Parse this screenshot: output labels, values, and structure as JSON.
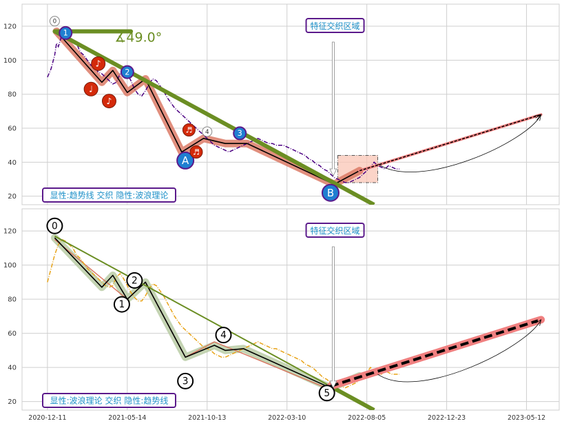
{
  "chart_data": [
    {
      "type": "line",
      "yticks": [
        20,
        40,
        60,
        80,
        100,
        120
      ],
      "ylim": [
        15,
        133
      ],
      "grid": true,
      "angle_label": "∡49.0°",
      "box_top": "特征交织区域",
      "box_bottom": "显性:趋势线 交织 隐性:波浪理论",
      "price": [
        [
          0,
          90
        ],
        [
          2,
          95
        ],
        [
          4,
          103
        ],
        [
          5,
          110
        ],
        [
          6,
          108
        ],
        [
          8,
          115
        ],
        [
          10,
          117
        ],
        [
          12,
          113
        ],
        [
          14,
          112
        ],
        [
          16,
          110
        ],
        [
          18,
          105
        ],
        [
          20,
          103
        ],
        [
          22,
          100
        ],
        [
          24,
          97
        ],
        [
          26,
          96
        ],
        [
          28,
          93
        ],
        [
          30,
          92
        ],
        [
          32,
          90
        ],
        [
          34,
          88
        ],
        [
          36,
          86
        ],
        [
          38,
          87
        ],
        [
          40,
          92
        ],
        [
          42,
          95
        ],
        [
          44,
          92
        ],
        [
          46,
          88
        ],
        [
          48,
          83
        ],
        [
          50,
          80
        ],
        [
          52,
          79
        ],
        [
          54,
          82
        ],
        [
          56,
          86
        ],
        [
          58,
          89
        ],
        [
          60,
          88
        ],
        [
          62,
          85
        ],
        [
          64,
          82
        ],
        [
          66,
          78
        ],
        [
          68,
          75
        ],
        [
          70,
          72
        ],
        [
          72,
          70
        ],
        [
          74,
          68
        ],
        [
          76,
          66
        ],
        [
          78,
          64
        ],
        [
          80,
          62
        ],
        [
          82,
          60
        ],
        [
          84,
          58
        ],
        [
          86,
          56
        ],
        [
          88,
          54
        ],
        [
          90,
          52
        ],
        [
          92,
          50
        ],
        [
          94,
          49
        ],
        [
          96,
          48
        ],
        [
          98,
          47
        ],
        [
          100,
          46
        ],
        [
          102,
          47
        ],
        [
          104,
          48
        ],
        [
          106,
          49
        ],
        [
          108,
          50
        ],
        [
          110,
          51
        ],
        [
          112,
          52
        ],
        [
          114,
          53
        ],
        [
          116,
          54
        ],
        [
          118,
          53
        ],
        [
          120,
          52
        ],
        [
          122,
          51
        ],
        [
          124,
          51
        ],
        [
          126,
          50
        ],
        [
          128,
          50
        ],
        [
          130,
          50
        ],
        [
          132,
          49
        ],
        [
          134,
          48
        ],
        [
          136,
          47
        ],
        [
          138,
          46
        ],
        [
          140,
          45
        ],
        [
          142,
          44
        ],
        [
          144,
          42
        ],
        [
          146,
          41
        ],
        [
          148,
          39
        ],
        [
          150,
          38
        ],
        [
          152,
          36
        ],
        [
          154,
          35
        ],
        [
          156,
          33
        ],
        [
          158,
          31
        ],
        [
          160,
          30
        ],
        [
          162,
          29
        ],
        [
          164,
          28
        ],
        [
          166,
          28
        ],
        [
          168,
          29
        ],
        [
          170,
          30
        ],
        [
          172,
          31
        ],
        [
          174,
          33
        ],
        [
          176,
          35
        ],
        [
          178,
          37
        ],
        [
          180,
          40
        ],
        [
          182,
          38
        ],
        [
          184,
          37
        ],
        [
          186,
          36
        ],
        [
          188,
          38
        ],
        [
          190,
          37
        ],
        [
          192,
          36
        ],
        [
          194,
          36
        ]
      ],
      "wave": [
        [
          5,
          117
        ],
        [
          30,
          87
        ],
        [
          36,
          94
        ],
        [
          44,
          81
        ],
        [
          54,
          89
        ],
        [
          74,
          46
        ],
        [
          86,
          54
        ],
        [
          98,
          51
        ],
        [
          110,
          51
        ],
        [
          158,
          27
        ],
        [
          172,
          35
        ]
      ],
      "trend_pts": [
        [
          4,
          117
        ],
        [
          180,
          15
        ]
      ],
      "trend_short": [
        [
          4,
          117
        ],
        [
          46,
          117
        ]
      ],
      "forecast": [
        [
          172,
          35
        ],
        [
          272,
          68
        ]
      ],
      "rect": [
        [
          160,
          182
        ],
        [
          28,
          44
        ]
      ],
      "arc": [
        [
          182,
          39
        ],
        [
          272,
          68
        ]
      ],
      "markers": [
        {
          "x": 4,
          "y": 123,
          "text": "0",
          "kind": "white",
          "r": 7
        },
        {
          "x": 10,
          "y": 116,
          "text": "1",
          "kind": "blue",
          "r": 9
        },
        {
          "x": 28,
          "y": 98,
          "text": "♪",
          "kind": "red",
          "r": 10
        },
        {
          "x": 24,
          "y": 83,
          "text": "♩",
          "kind": "red",
          "r": 10
        },
        {
          "x": 34,
          "y": 76,
          "text": "♪",
          "kind": "red",
          "r": 10
        },
        {
          "x": 44,
          "y": 93,
          "text": "2",
          "kind": "blue",
          "r": 9
        },
        {
          "x": 76,
          "y": 41,
          "text": "A",
          "kind": "blue",
          "r": 12
        },
        {
          "x": 78,
          "y": 59,
          "text": "♬",
          "kind": "red",
          "r": 9
        },
        {
          "x": 82,
          "y": 46,
          "text": "♬",
          "kind": "red",
          "r": 9
        },
        {
          "x": 88,
          "y": 58,
          "text": "4",
          "kind": "white",
          "r": 7
        },
        {
          "x": 106,
          "y": 57,
          "text": "3",
          "kind": "blue",
          "r": 9
        },
        {
          "x": 156,
          "y": 22,
          "text": "B",
          "kind": "blue",
          "r": 12
        }
      ]
    },
    {
      "type": "line",
      "yticks": [
        20,
        40,
        60,
        80,
        100,
        120
      ],
      "ylim": [
        15,
        133
      ],
      "grid": true,
      "box_top": "特征交织区域",
      "box_bottom": "显性:波浪理论 交织 隐性:趋势线",
      "price": [
        [
          0,
          90
        ],
        [
          2,
          98
        ],
        [
          4,
          106
        ],
        [
          6,
          112
        ],
        [
          8,
          115
        ],
        [
          10,
          114
        ],
        [
          12,
          112
        ],
        [
          14,
          110
        ],
        [
          16,
          106
        ],
        [
          18,
          104
        ],
        [
          20,
          101
        ],
        [
          22,
          98
        ],
        [
          24,
          96
        ],
        [
          26,
          94
        ],
        [
          28,
          92
        ],
        [
          30,
          90
        ],
        [
          32,
          88
        ],
        [
          34,
          87
        ],
        [
          36,
          88
        ],
        [
          38,
          93
        ],
        [
          40,
          95
        ],
        [
          42,
          92
        ],
        [
          44,
          88
        ],
        [
          46,
          84
        ],
        [
          48,
          81
        ],
        [
          50,
          79
        ],
        [
          52,
          79
        ],
        [
          54,
          82
        ],
        [
          56,
          86
        ],
        [
          58,
          89
        ],
        [
          60,
          88
        ],
        [
          62,
          85
        ],
        [
          64,
          82
        ],
        [
          66,
          78
        ],
        [
          68,
          74
        ],
        [
          70,
          70
        ],
        [
          72,
          67
        ],
        [
          74,
          64
        ],
        [
          76,
          62
        ],
        [
          78,
          60
        ],
        [
          80,
          58
        ],
        [
          82,
          56
        ],
        [
          84,
          54
        ],
        [
          86,
          52
        ],
        [
          88,
          51
        ],
        [
          90,
          50
        ],
        [
          92,
          48
        ],
        [
          94,
          47
        ],
        [
          96,
          46
        ],
        [
          98,
          46
        ],
        [
          100,
          47
        ],
        [
          102,
          48
        ],
        [
          104,
          49
        ],
        [
          106,
          50
        ],
        [
          108,
          51
        ],
        [
          110,
          52
        ],
        [
          112,
          53
        ],
        [
          114,
          54
        ],
        [
          116,
          55
        ],
        [
          118,
          54
        ],
        [
          120,
          53
        ],
        [
          122,
          52
        ],
        [
          124,
          51
        ],
        [
          126,
          51
        ],
        [
          128,
          50
        ],
        [
          130,
          49
        ],
        [
          132,
          48
        ],
        [
          134,
          47
        ],
        [
          136,
          46
        ],
        [
          138,
          45
        ],
        [
          140,
          44
        ],
        [
          142,
          42
        ],
        [
          144,
          41
        ],
        [
          146,
          40
        ],
        [
          148,
          38
        ],
        [
          150,
          36
        ],
        [
          152,
          34
        ],
        [
          154,
          33
        ],
        [
          156,
          31
        ],
        [
          158,
          30
        ],
        [
          160,
          29
        ],
        [
          162,
          29
        ],
        [
          164,
          28
        ],
        [
          166,
          29
        ],
        [
          168,
          30
        ],
        [
          170,
          31
        ],
        [
          172,
          33
        ],
        [
          174,
          35
        ],
        [
          176,
          37
        ],
        [
          178,
          40
        ],
        [
          180,
          38
        ],
        [
          182,
          37
        ],
        [
          184,
          36
        ],
        [
          186,
          38
        ],
        [
          188,
          37
        ],
        [
          190,
          36
        ],
        [
          192,
          36
        ],
        [
          194,
          36
        ]
      ],
      "wave": [
        [
          4,
          116
        ],
        [
          30,
          87
        ],
        [
          36,
          94
        ],
        [
          44,
          80
        ],
        [
          54,
          90
        ],
        [
          76,
          46
        ],
        [
          92,
          53
        ],
        [
          98,
          50
        ],
        [
          108,
          51
        ],
        [
          156,
          28
        ],
        [
          172,
          35
        ]
      ],
      "wave2": [
        [
          4,
          115
        ],
        [
          44,
          80
        ],
        [
          54,
          90
        ],
        [
          76,
          46
        ],
        [
          92,
          55
        ],
        [
          156,
          27
        ]
      ],
      "trend_pts": [
        [
          4,
          117
        ],
        [
          180,
          15
        ]
      ],
      "forecast": [
        [
          156,
          29
        ],
        [
          272,
          68
        ]
      ],
      "arc": [
        [
          182,
          36
        ],
        [
          272,
          68
        ]
      ],
      "markers": [
        {
          "x": 4,
          "y": 123,
          "text": "0",
          "kind": "outline",
          "r": 11
        },
        {
          "x": 41,
          "y": 77,
          "text": "1",
          "kind": "outline",
          "r": 11
        },
        {
          "x": 48,
          "y": 91,
          "text": "2",
          "kind": "outline",
          "r": 11
        },
        {
          "x": 76,
          "y": 32,
          "text": "3",
          "kind": "outline",
          "r": 11
        },
        {
          "x": 97,
          "y": 59,
          "text": "4",
          "kind": "outline",
          "r": 11
        },
        {
          "x": 154,
          "y": 25,
          "text": "5",
          "kind": "outline",
          "r": 11
        }
      ]
    }
  ],
  "x_axis": {
    "ticks": [
      {
        "x": 0,
        "label": "2020-12-11"
      },
      {
        "x": 44,
        "label": "2021-05-14"
      },
      {
        "x": 88,
        "label": "2021-10-13"
      },
      {
        "x": 132,
        "label": "2022-03-10"
      },
      {
        "x": 176,
        "label": "2022-08-05"
      },
      {
        "x": 220,
        "label": "2022-12-23"
      },
      {
        "x": 264,
        "label": "2023-05-12"
      }
    ],
    "xlim": [
      -14,
      282
    ]
  },
  "colors": {
    "background": "#ffffff",
    "grid": "#cfcfcf",
    "frame": "#cfcfcf",
    "price_top": "#4b0082",
    "price_bottom": "#e8a317",
    "trend": "#6b8e23",
    "wave_band": "#d9735e",
    "wave_band2": "#b5c9a0",
    "forecast": "#f08080",
    "rect_fill": "#f9c6b6",
    "box_text": "#1e90c8",
    "box_border": "#5b1a8b",
    "marker_red": "#d42a0a",
    "marker_blue": "#1f7fd1",
    "angle_text": "#6b8e23"
  }
}
